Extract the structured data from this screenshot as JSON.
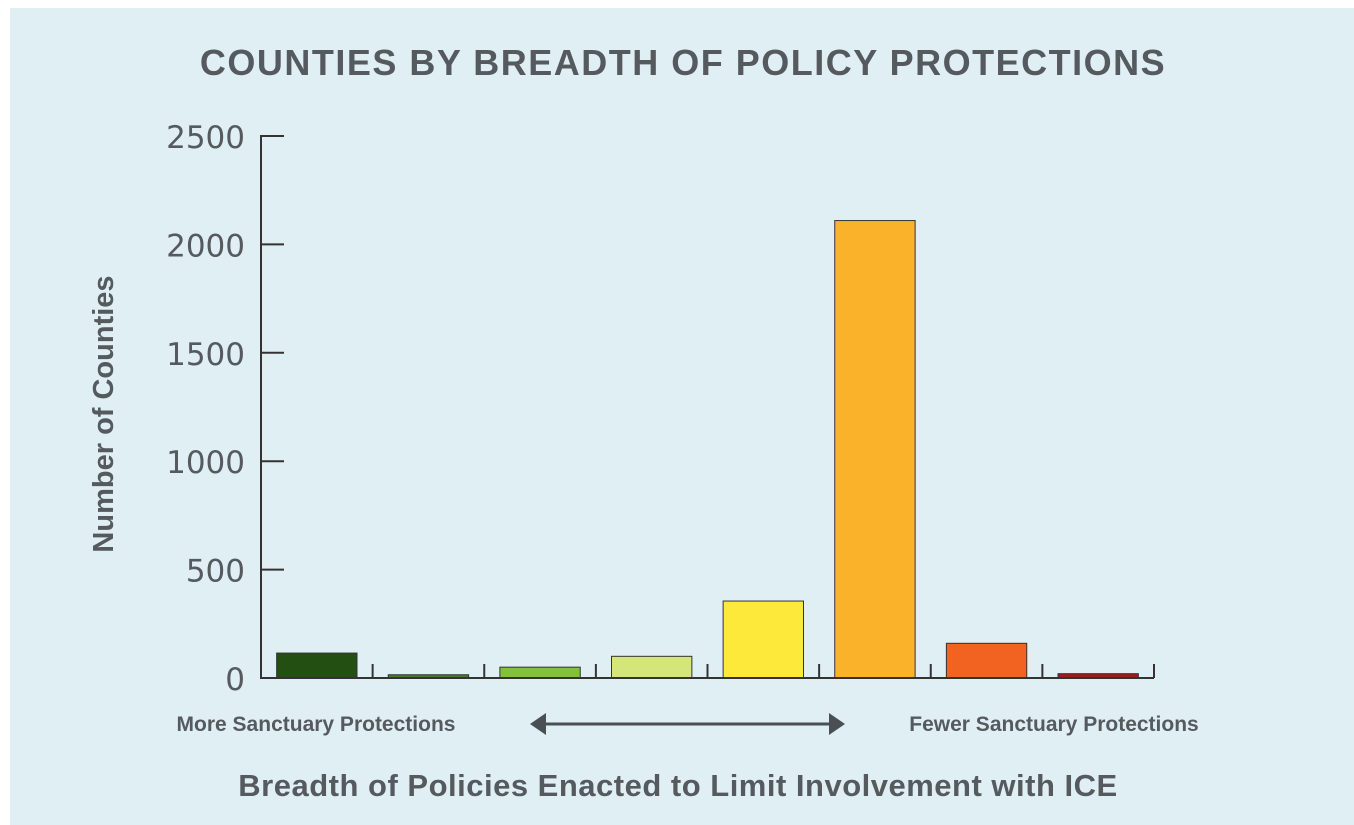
{
  "chart_data": {
    "type": "bar",
    "title": "COUNTIES BY BREADTH OF POLICY PROTECTIONS",
    "xlabel": "Breadth of Policies Enacted to Limit Involvement with ICE",
    "ylabel": "Number of Counties",
    "ylim": [
      0,
      2500
    ],
    "yticks": [
      "0",
      "500",
      "1000",
      "1500",
      "2000",
      "2500"
    ],
    "values": [
      115,
      15,
      50,
      100,
      355,
      2110,
      160,
      20
    ],
    "colors": [
      "#234f12",
      "#497a25",
      "#84c13a",
      "#d4e57a",
      "#fde93a",
      "#fbb22b",
      "#f26322",
      "#9e1a1c"
    ],
    "annotations": {
      "left": "More Sanctuary Protections",
      "right": "Fewer Sanctuary Protections"
    },
    "grid": false,
    "legend": "none"
  }
}
